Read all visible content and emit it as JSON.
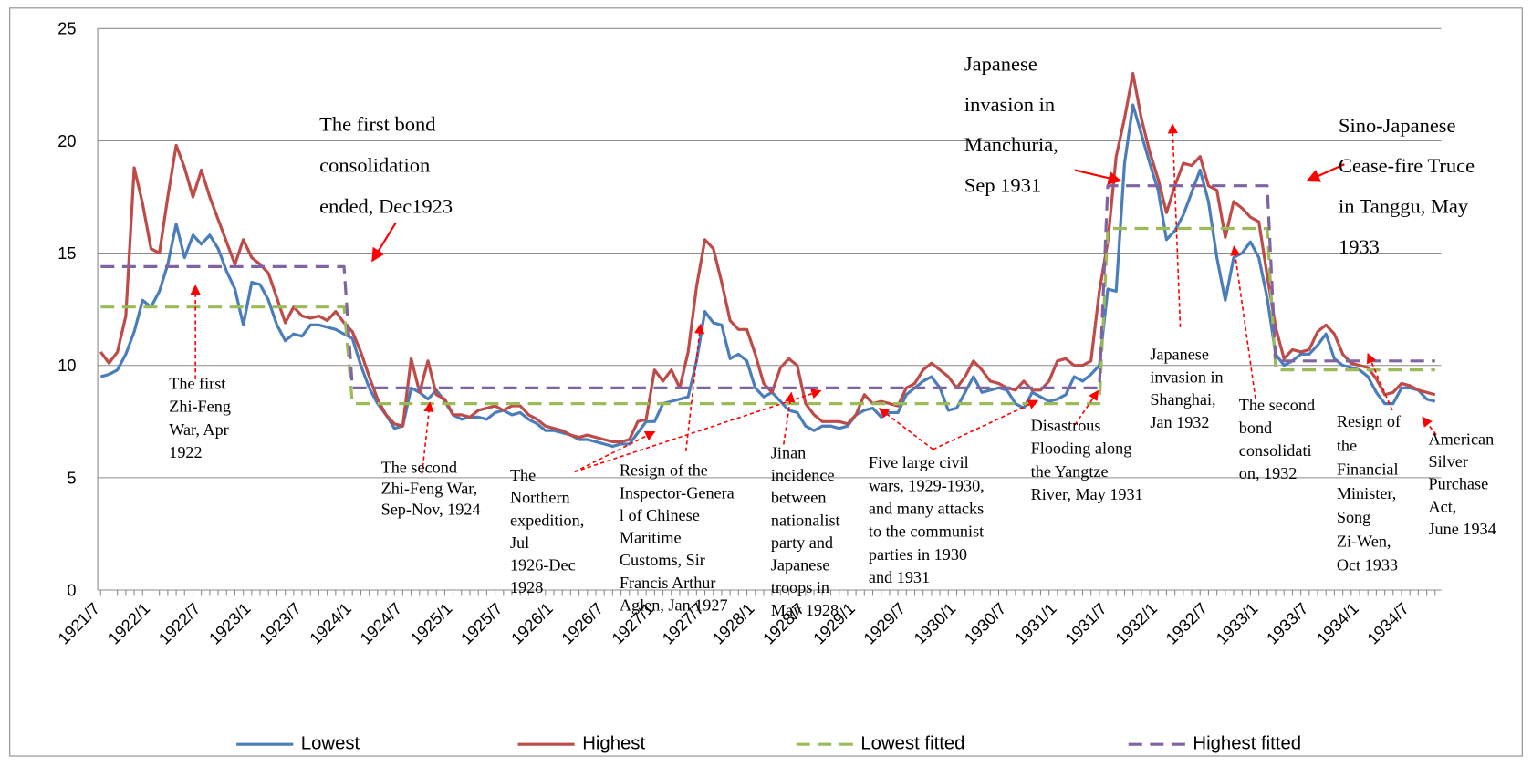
{
  "chart_data": {
    "type": "line",
    "categories": [
      "1921/7",
      null,
      null,
      null,
      null,
      null,
      "1922/1",
      null,
      null,
      null,
      null,
      null,
      "1922/7",
      null,
      null,
      null,
      null,
      null,
      "1923/1",
      null,
      null,
      null,
      null,
      null,
      "1923/7",
      null,
      null,
      null,
      null,
      null,
      "1924/1",
      null,
      null,
      null,
      null,
      null,
      "1924/7",
      null,
      null,
      null,
      null,
      null,
      "1925/1",
      null,
      null,
      null,
      null,
      null,
      "1925/7",
      null,
      null,
      null,
      null,
      null,
      "1926/1",
      null,
      null,
      null,
      null,
      null,
      "1926/7",
      null,
      null,
      null,
      null,
      null,
      "1927/1",
      null,
      null,
      null,
      null,
      null,
      "1927/7",
      null,
      null,
      null,
      null,
      null,
      "1928/1",
      null,
      null,
      null,
      null,
      null,
      "1928/7",
      null,
      null,
      null,
      null,
      null,
      "1929/1",
      null,
      null,
      null,
      null,
      null,
      "1929/7",
      null,
      null,
      null,
      null,
      null,
      "1930/1",
      null,
      null,
      null,
      null,
      null,
      "1930/7",
      null,
      null,
      null,
      null,
      null,
      "1931/1",
      null,
      null,
      null,
      null,
      null,
      "1931/7",
      null,
      null,
      null,
      null,
      null,
      "1932/1",
      null,
      null,
      null,
      null,
      null,
      "1932/7",
      null,
      null,
      null,
      null,
      null,
      "1933/1",
      null,
      null,
      null,
      null,
      null,
      "1933/7",
      null,
      null,
      null,
      null,
      null,
      "1934/1",
      null,
      null,
      null,
      null,
      null,
      "1934/7",
      null,
      null,
      null
    ],
    "series": [
      {
        "name": "Lowest",
        "color": "#4a7ebb",
        "dashed": false,
        "values": [
          9.5,
          9.6,
          9.8,
          10.5,
          11.5,
          12.9,
          12.6,
          13.3,
          14.5,
          16.3,
          14.8,
          15.8,
          15.4,
          15.8,
          15.2,
          14.2,
          13.4,
          11.8,
          13.7,
          13.6,
          12.9,
          11.8,
          11.1,
          11.4,
          11.3,
          11.8,
          11.8,
          11.7,
          11.6,
          11.4,
          11.2,
          10.0,
          9.0,
          8.3,
          7.8,
          7.2,
          7.3,
          9.0,
          8.8,
          8.5,
          8.9,
          8.4,
          7.8,
          7.6,
          7.7,
          7.7,
          7.6,
          7.9,
          8.0,
          7.8,
          7.9,
          7.6,
          7.4,
          7.1,
          7.1,
          7.0,
          6.9,
          6.7,
          6.7,
          6.6,
          6.5,
          6.4,
          6.5,
          6.5,
          7.0,
          7.5,
          7.5,
          8.3,
          8.4,
          8.5,
          8.6,
          10.2,
          12.4,
          11.9,
          11.8,
          10.3,
          10.5,
          10.2,
          9.0,
          8.6,
          8.8,
          8.4,
          8.0,
          7.9,
          7.3,
          7.1,
          7.3,
          7.3,
          7.2,
          7.3,
          7.8,
          8.0,
          8.1,
          7.7,
          7.9,
          7.9,
          8.7,
          9.0,
          9.3,
          9.5,
          9.0,
          8.0,
          8.1,
          8.8,
          9.5,
          8.8,
          8.9,
          9.0,
          8.9,
          8.3,
          8.1,
          8.8,
          8.6,
          8.4,
          8.5,
          8.7,
          9.5,
          9.3,
          9.6,
          10.0,
          13.4,
          13.3,
          19.0,
          21.6,
          20.3,
          19.0,
          17.8,
          15.6,
          16.0,
          16.7,
          17.7,
          18.7,
          17.3,
          14.8,
          12.9,
          14.8,
          15.0,
          15.5,
          14.8,
          13.0,
          10.5,
          10.0,
          10.2,
          10.5,
          10.5,
          10.9,
          11.4,
          10.3,
          10.0,
          9.9,
          9.8,
          9.5,
          8.8,
          8.3,
          8.3,
          9.0,
          9.0,
          8.9,
          8.5,
          8.4
        ]
      },
      {
        "name": "Highest",
        "color": "#be4b48",
        "dashed": false,
        "values": [
          10.6,
          10.1,
          10.6,
          12.2,
          18.8,
          17.2,
          15.2,
          15.0,
          17.5,
          19.8,
          18.8,
          17.5,
          18.7,
          17.5,
          16.5,
          15.5,
          14.5,
          15.6,
          14.8,
          14.5,
          14.1,
          13.0,
          11.9,
          12.6,
          12.2,
          12.1,
          12.2,
          12.0,
          12.4,
          11.9,
          11.5,
          10.6,
          9.5,
          8.5,
          7.8,
          7.4,
          7.3,
          10.3,
          8.8,
          10.2,
          8.7,
          8.5,
          7.8,
          7.8,
          7.7,
          8.0,
          8.1,
          8.2,
          8.0,
          8.2,
          8.2,
          7.8,
          7.6,
          7.3,
          7.2,
          7.1,
          6.9,
          6.8,
          6.9,
          6.8,
          6.7,
          6.6,
          6.6,
          6.7,
          7.5,
          7.6,
          9.8,
          9.3,
          9.8,
          9.0,
          10.6,
          13.5,
          15.6,
          15.2,
          13.7,
          12.0,
          11.6,
          11.6,
          10.5,
          9.2,
          8.8,
          9.9,
          10.3,
          10.0,
          8.3,
          7.8,
          7.5,
          7.5,
          7.5,
          7.4,
          7.8,
          8.7,
          8.3,
          8.4,
          8.3,
          8.2,
          9.0,
          9.2,
          9.8,
          10.1,
          9.8,
          9.5,
          9.0,
          9.5,
          10.2,
          9.8,
          9.3,
          9.2,
          9.0,
          8.9,
          9.3,
          8.9,
          8.9,
          9.3,
          10.2,
          10.3,
          10.0,
          10.0,
          10.2,
          13.3,
          15.5,
          19.3,
          21.0,
          23.0,
          21.0,
          19.5,
          18.3,
          16.8,
          18.0,
          19.0,
          18.9,
          19.3,
          18.0,
          17.8,
          15.7,
          17.3,
          17.0,
          16.6,
          16.4,
          14.0,
          11.7,
          10.3,
          10.7,
          10.6,
          10.7,
          11.5,
          11.8,
          11.4,
          10.5,
          10.1,
          10.0,
          9.9,
          9.4,
          8.7,
          8.8,
          9.2,
          9.1,
          8.9,
          8.8,
          8.7
        ]
      },
      {
        "name": "Lowest fitted",
        "color": "#9bbb59",
        "dashed": true,
        "values": [
          12.6,
          12.6,
          12.6,
          12.6,
          12.6,
          12.6,
          12.6,
          12.6,
          12.6,
          12.6,
          12.6,
          12.6,
          12.6,
          12.6,
          12.6,
          12.6,
          12.6,
          12.6,
          12.6,
          12.6,
          12.6,
          12.6,
          12.6,
          12.6,
          12.6,
          12.6,
          12.6,
          12.6,
          12.6,
          12.6,
          8.3,
          8.3,
          8.3,
          8.3,
          8.3,
          8.3,
          8.3,
          8.3,
          8.3,
          8.3,
          8.3,
          8.3,
          8.3,
          8.3,
          8.3,
          8.3,
          8.3,
          8.3,
          8.3,
          8.3,
          8.3,
          8.3,
          8.3,
          8.3,
          8.3,
          8.3,
          8.3,
          8.3,
          8.3,
          8.3,
          8.3,
          8.3,
          8.3,
          8.3,
          8.3,
          8.3,
          8.3,
          8.3,
          8.3,
          8.3,
          8.3,
          8.3,
          8.3,
          8.3,
          8.3,
          8.3,
          8.3,
          8.3,
          8.3,
          8.3,
          8.3,
          8.3,
          8.3,
          8.3,
          8.3,
          8.3,
          8.3,
          8.3,
          8.3,
          8.3,
          8.3,
          8.3,
          8.3,
          8.3,
          8.3,
          8.3,
          8.3,
          8.3,
          8.3,
          8.3,
          8.3,
          8.3,
          8.3,
          8.3,
          8.3,
          8.3,
          8.3,
          8.3,
          8.3,
          8.3,
          8.3,
          8.3,
          8.3,
          8.3,
          8.3,
          8.3,
          8.3,
          8.3,
          8.3,
          8.3,
          16.1,
          16.1,
          16.1,
          16.1,
          16.1,
          16.1,
          16.1,
          16.1,
          16.1,
          16.1,
          16.1,
          16.1,
          16.1,
          16.1,
          16.1,
          16.1,
          16.1,
          16.1,
          16.1,
          16.1,
          9.8,
          9.8,
          9.8,
          9.8,
          9.8,
          9.8,
          9.8,
          9.8,
          9.8,
          9.8,
          9.8,
          9.8,
          9.8,
          9.8,
          9.8,
          9.8,
          9.8,
          9.8,
          9.8,
          9.8
        ]
      },
      {
        "name": "Highest fitted",
        "color": "#8064a2",
        "dashed": true,
        "values": [
          14.4,
          14.4,
          14.4,
          14.4,
          14.4,
          14.4,
          14.4,
          14.4,
          14.4,
          14.4,
          14.4,
          14.4,
          14.4,
          14.4,
          14.4,
          14.4,
          14.4,
          14.4,
          14.4,
          14.4,
          14.4,
          14.4,
          14.4,
          14.4,
          14.4,
          14.4,
          14.4,
          14.4,
          14.4,
          14.4,
          9.0,
          9.0,
          9.0,
          9.0,
          9.0,
          9.0,
          9.0,
          9.0,
          9.0,
          9.0,
          9.0,
          9.0,
          9.0,
          9.0,
          9.0,
          9.0,
          9.0,
          9.0,
          9.0,
          9.0,
          9.0,
          9.0,
          9.0,
          9.0,
          9.0,
          9.0,
          9.0,
          9.0,
          9.0,
          9.0,
          9.0,
          9.0,
          9.0,
          9.0,
          9.0,
          9.0,
          9.0,
          9.0,
          9.0,
          9.0,
          9.0,
          9.0,
          9.0,
          9.0,
          9.0,
          9.0,
          9.0,
          9.0,
          9.0,
          9.0,
          9.0,
          9.0,
          9.0,
          9.0,
          9.0,
          9.0,
          9.0,
          9.0,
          9.0,
          9.0,
          9.0,
          9.0,
          9.0,
          9.0,
          9.0,
          9.0,
          9.0,
          9.0,
          9.0,
          9.0,
          9.0,
          9.0,
          9.0,
          9.0,
          9.0,
          9.0,
          9.0,
          9.0,
          9.0,
          9.0,
          9.0,
          9.0,
          9.0,
          9.0,
          9.0,
          9.0,
          9.0,
          9.0,
          9.0,
          9.0,
          18.0,
          18.0,
          18.0,
          18.0,
          18.0,
          18.0,
          18.0,
          18.0,
          18.0,
          18.0,
          18.0,
          18.0,
          18.0,
          18.0,
          18.0,
          18.0,
          18.0,
          18.0,
          18.0,
          18.0,
          10.2,
          10.2,
          10.2,
          10.2,
          10.2,
          10.2,
          10.2,
          10.2,
          10.2,
          10.2,
          10.2,
          10.2,
          10.2,
          10.2,
          10.2,
          10.2,
          10.2,
          10.2,
          10.2,
          10.2
        ]
      }
    ],
    "ylim": [
      0,
      25
    ],
    "yticks": [
      0,
      5,
      10,
      15,
      20,
      25
    ],
    "grid": true,
    "legend": "bottom",
    "annotations": [
      {
        "lines": [
          "The first bond",
          "consolidation",
          "ended, Dec1923"
        ]
      },
      {
        "lines": [
          "Japanese",
          "invasion in",
          "Manchuria,",
          "Sep 1931"
        ]
      },
      {
        "lines": [
          "Sino-Japanese",
          "Cease-fire Truce",
          "in Tanggu, May",
          "1933"
        ]
      },
      {
        "lines": [
          "The first",
          "Zhi-Feng",
          "War, Apr",
          "1922"
        ]
      },
      {
        "lines": [
          "The second",
          "Zhi-Feng War,",
          "Sep-Nov, 1924"
        ]
      },
      {
        "lines": [
          "The",
          "Northern",
          "expedition,",
          "Jul",
          "1926-Dec",
          "1928"
        ]
      },
      {
        "lines": [
          "Resign of the",
          "Inspector-Genera",
          "l of Chinese",
          "Maritime",
          "Customs, Sir",
          "Francis Arthur",
          "Aglen, Jan 1927"
        ]
      },
      {
        "lines": [
          "Jinan",
          "incidence",
          "between",
          "nationalist",
          "party and",
          "Japanese",
          "troops in",
          "May 1928"
        ]
      },
      {
        "lines": [
          "Five large civil",
          "wars, 1929-1930,",
          "and many attacks",
          "to the communist",
          "parties in 1930",
          "and 1931"
        ]
      },
      {
        "lines": [
          "Disastrous",
          "Flooding along",
          "the Yangtze",
          "River, May 1931"
        ]
      },
      {
        "lines": [
          "Japanese",
          "invasion in",
          "Shanghai,",
          "Jan 1932"
        ]
      },
      {
        "lines": [
          "The second",
          "bond",
          "consolidati",
          "on, 1932"
        ]
      },
      {
        "lines": [
          "Resign of",
          "the",
          "Financial",
          "Minister,",
          "Song",
          "Zi-Wen,",
          "Oct 1933"
        ]
      },
      {
        "lines": [
          "American",
          "Silver",
          "Purchase",
          "Act,",
          "June 1934"
        ]
      }
    ]
  }
}
